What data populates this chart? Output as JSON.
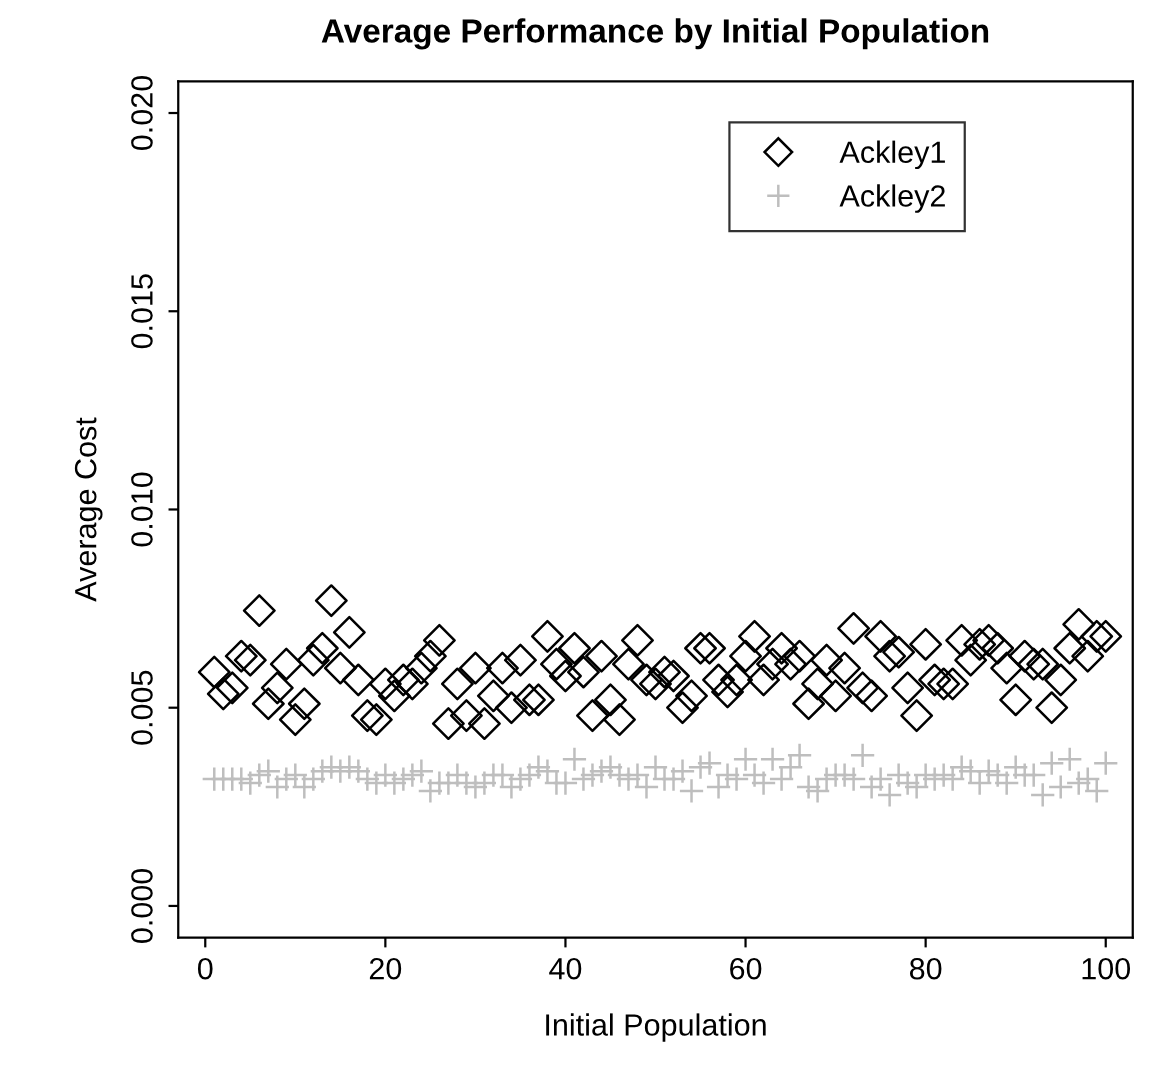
{
  "chart_data": {
    "type": "scatter",
    "title": "Average Performance by Initial Population",
    "xlabel": "Initial Population",
    "ylabel": "Average Cost",
    "x": [
      1,
      2,
      3,
      4,
      5,
      6,
      7,
      8,
      9,
      10,
      11,
      12,
      13,
      14,
      15,
      16,
      17,
      18,
      19,
      20,
      21,
      22,
      23,
      24,
      25,
      26,
      27,
      28,
      29,
      30,
      31,
      32,
      33,
      34,
      35,
      36,
      37,
      38,
      39,
      40,
      41,
      42,
      43,
      44,
      45,
      46,
      47,
      48,
      49,
      50,
      51,
      52,
      53,
      54,
      55,
      56,
      57,
      58,
      59,
      60,
      61,
      62,
      63,
      64,
      65,
      66,
      67,
      68,
      69,
      70,
      71,
      72,
      73,
      74,
      75,
      76,
      77,
      78,
      79,
      80,
      81,
      82,
      83,
      84,
      85,
      86,
      87,
      88,
      89,
      90,
      91,
      92,
      93,
      94,
      95,
      96,
      97,
      98,
      99,
      100
    ],
    "series": [
      {
        "name": "Ackley1",
        "color": "#000000",
        "marker": "diamond",
        "values": [
          0.0059,
          0.00535,
          0.0055,
          0.0063,
          0.0062,
          0.00745,
          0.0051,
          0.0055,
          0.0061,
          0.0047,
          0.0051,
          0.0062,
          0.0065,
          0.0077,
          0.006,
          0.0069,
          0.0057,
          0.0048,
          0.0047,
          0.0056,
          0.0053,
          0.0057,
          0.0056,
          0.006,
          0.0063,
          0.0067,
          0.0046,
          0.0056,
          0.0048,
          0.006,
          0.0046,
          0.0053,
          0.006,
          0.005,
          0.0062,
          0.0052,
          0.0052,
          0.0068,
          0.0061,
          0.0058,
          0.0065,
          0.0059,
          0.0048,
          0.0063,
          0.0052,
          0.0047,
          0.0061,
          0.0067,
          0.0057,
          0.0056,
          0.0059,
          0.0058,
          0.005,
          0.0053,
          0.0065,
          0.0065,
          0.0057,
          0.0054,
          0.0057,
          0.0063,
          0.0068,
          0.0057,
          0.0061,
          0.0065,
          0.0061,
          0.0063,
          0.0051,
          0.0056,
          0.0062,
          0.0053,
          0.006,
          0.007,
          0.0055,
          0.0053,
          0.0068,
          0.0063,
          0.0064,
          0.0055,
          0.0048,
          0.0066,
          0.0057,
          0.0056,
          0.0056,
          0.0067,
          0.0062,
          0.0066,
          0.0067,
          0.0065,
          0.006,
          0.0052,
          0.0063,
          0.0061,
          0.0061,
          0.005,
          0.0057,
          0.0065,
          0.0071,
          0.0063,
          0.0068,
          0.0068
        ]
      },
      {
        "name": "Ackley2",
        "color": "#bebebe",
        "marker": "cross",
        "values": [
          0.0032,
          0.0032,
          0.0032,
          0.0032,
          0.0031,
          0.0033,
          0.0034,
          0.003,
          0.0032,
          0.0033,
          0.003,
          0.0032,
          0.0034,
          0.0035,
          0.0034,
          0.0035,
          0.0034,
          0.0032,
          0.0031,
          0.0033,
          0.0031,
          0.0032,
          0.0033,
          0.0034,
          0.0029,
          0.0031,
          0.0031,
          0.0033,
          0.0031,
          0.003,
          0.0031,
          0.0033,
          0.0033,
          0.003,
          0.0032,
          0.0033,
          0.0035,
          0.0034,
          0.0031,
          0.0031,
          0.0037,
          0.0032,
          0.0033,
          0.0034,
          0.0035,
          0.0033,
          0.0032,
          0.0033,
          0.003,
          0.0035,
          0.0032,
          0.0032,
          0.0034,
          0.0029,
          0.0035,
          0.0036,
          0.003,
          0.0033,
          0.0032,
          0.0037,
          0.0033,
          0.0031,
          0.0037,
          0.0032,
          0.0035,
          0.0038,
          0.003,
          0.0029,
          0.0032,
          0.0033,
          0.0033,
          0.0032,
          0.0038,
          0.003,
          0.0032,
          0.0028,
          0.0033,
          0.0031,
          0.003,
          0.0033,
          0.0032,
          0.0033,
          0.0032,
          0.0035,
          0.0034,
          0.0031,
          0.0034,
          0.0033,
          0.0031,
          0.0035,
          0.0033,
          0.0033,
          0.0028,
          0.0036,
          0.003,
          0.0037,
          0.0031,
          0.0032,
          0.0029,
          0.0036
        ]
      }
    ],
    "xlim": [
      -3,
      103
    ],
    "xticks": [
      0,
      20,
      40,
      60,
      80,
      100
    ],
    "ylim": [
      -0.0008,
      0.0208
    ],
    "yticks": [
      {
        "value": 0,
        "label": "0.000"
      },
      {
        "value": 0.005,
        "label": "0.005"
      },
      {
        "value": 0.01,
        "label": "0.010"
      },
      {
        "value": 0.015,
        "label": "0.015"
      },
      {
        "value": 0.02,
        "label": "0.020"
      }
    ],
    "grid": false,
    "legend": "top right"
  }
}
